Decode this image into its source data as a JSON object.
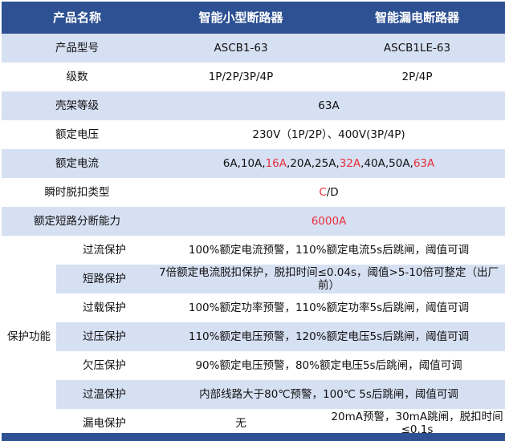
{
  "header": [
    "产品名称",
    "智能小型断路器",
    "智能漏电断路器"
  ],
  "rows": {
    "model": {
      "label": "产品型号",
      "a": "ASCB1-63",
      "b": "ASCB1LE-63"
    },
    "poles": {
      "label": "级数",
      "a": "1P/2P/3P/4P",
      "b": "2P/4P"
    },
    "frame": {
      "label": "壳架等级",
      "v": "63A"
    },
    "voltage": {
      "label": "额定电压",
      "v": "230V（1P/2P）、400V(3P/4P)"
    },
    "current": {
      "label": "额定电流",
      "parts": [
        "6A,10A,",
        "16A",
        ",20A,25A,",
        "32A",
        ",40A,50A,",
        "63A"
      ]
    },
    "trip": {
      "label": "瞬时脱扣类型",
      "parts": [
        "C",
        "/D"
      ]
    },
    "breaking": {
      "label": "额定短路分断能力",
      "v": "6000A"
    }
  },
  "protection": {
    "label": "保护功能",
    "items": [
      {
        "name": "过流保护",
        "desc": "100%额定电流预警，110%额定电流5s后跳闸，阈值可调"
      },
      {
        "name": "短路保护",
        "desc": "7倍额定电流脱扣保护，脱扣时间≤0.04s，阈值>5-10倍可整定（出厂前）"
      },
      {
        "name": "过载保护",
        "desc": "100%额定功率预警，110%额定功率5s后跳闸，阈值可调"
      },
      {
        "name": "过压保护",
        "desc": "110%额定电压预警，120%额定电压5s后跳闸，阈值可调"
      },
      {
        "name": "欠压保护",
        "desc": "90%额定电压预警，80%额定电压5s后跳闸，阈值可调"
      },
      {
        "name": "过温保护",
        "desc": "内部线路大于80℃预警，100℃ 5s后跳闸，阈值可调"
      },
      {
        "name": "漏电保护",
        "a": "无",
        "b": "20mA预警，30mA跳闸，脱扣时间≤0.1s"
      }
    ]
  },
  "colors": {
    "header": "#2E5193",
    "stripe": "#D6E0F3",
    "highlight": "#E8303A"
  }
}
